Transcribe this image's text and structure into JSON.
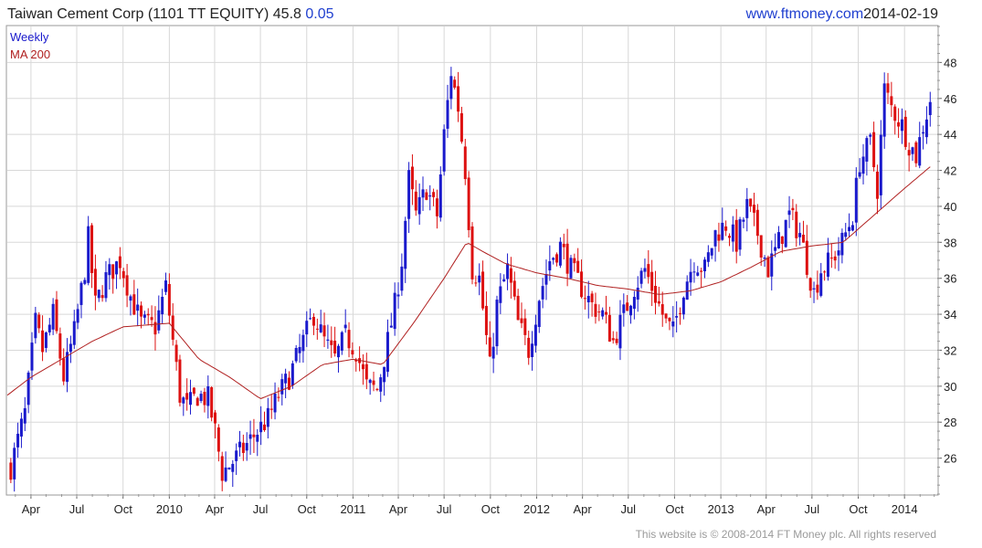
{
  "header": {
    "title": "Taiwan Cement Corp (1101 TT EQUITY) 45.8",
    "change": "0.05",
    "site": "www.ftmoney.com",
    "date": "2014-02-19"
  },
  "footer": "This website is © 2008-2014 FT Money plc. All rights reserved",
  "colors": {
    "up": "#1a1acc",
    "down": "#dd1111",
    "ma": "#b02020",
    "grid": "#d8d8d8",
    "blue_text": "#1f3fcf"
  },
  "chart_data": {
    "type": "candlestick",
    "title": "Taiwan Cement Corp (1101 TT EQUITY) 45.8 0.05",
    "legend": [
      "Weekly",
      "MA 200"
    ],
    "legend_position": "top-left",
    "y_axis_side": "right",
    "grid": true,
    "ylim": [
      24,
      50
    ],
    "yticks": [
      26,
      28,
      30,
      32,
      34,
      36,
      38,
      40,
      42,
      44,
      46,
      48
    ],
    "x_range": [
      "2009-02-13",
      "2014-03-07"
    ],
    "xticks": [
      {
        "date": "2009-04-01",
        "label": "Apr"
      },
      {
        "date": "2009-07-01",
        "label": "Jul"
      },
      {
        "date": "2009-10-01",
        "label": "Oct"
      },
      {
        "date": "2010-01-01",
        "label": "2010"
      },
      {
        "date": "2010-04-01",
        "label": "Apr"
      },
      {
        "date": "2010-07-01",
        "label": "Jul"
      },
      {
        "date": "2010-10-01",
        "label": "Oct"
      },
      {
        "date": "2011-01-01",
        "label": "2011"
      },
      {
        "date": "2011-04-01",
        "label": "Apr"
      },
      {
        "date": "2011-07-01",
        "label": "Jul"
      },
      {
        "date": "2011-10-01",
        "label": "Oct"
      },
      {
        "date": "2012-01-01",
        "label": "2012"
      },
      {
        "date": "2012-04-01",
        "label": "Apr"
      },
      {
        "date": "2012-07-01",
        "label": "Jul"
      },
      {
        "date": "2012-10-01",
        "label": "Oct"
      },
      {
        "date": "2013-01-01",
        "label": "2013"
      },
      {
        "date": "2013-04-01",
        "label": "Apr"
      },
      {
        "date": "2013-07-01",
        "label": "Jul"
      },
      {
        "date": "2013-10-01",
        "label": "Oct"
      },
      {
        "date": "2014-01-01",
        "label": "2014"
      }
    ],
    "close_anchors": [
      [
        "2009-02-20",
        25.5
      ],
      [
        "2009-03-20",
        28.5
      ],
      [
        "2009-04-10",
        33.5
      ],
      [
        "2009-04-24",
        32.0
      ],
      [
        "2009-05-15",
        34.0
      ],
      [
        "2009-06-05",
        30.5
      ],
      [
        "2009-06-26",
        33.0
      ],
      [
        "2009-07-17",
        36.5
      ],
      [
        "2009-07-24",
        38.2
      ],
      [
        "2009-08-07",
        34.5
      ],
      [
        "2009-08-28",
        36.0
      ],
      [
        "2009-09-25",
        37.0
      ],
      [
        "2009-10-16",
        35.0
      ],
      [
        "2009-11-06",
        33.5
      ],
      [
        "2009-12-04",
        33.3
      ],
      [
        "2009-12-25",
        35.5
      ],
      [
        "2010-01-22",
        29.5
      ],
      [
        "2010-02-05",
        28.8
      ],
      [
        "2010-02-26",
        29.5
      ],
      [
        "2010-03-19",
        29.3
      ],
      [
        "2010-04-02",
        27.5
      ],
      [
        "2010-04-16",
        25.2
      ],
      [
        "2010-05-07",
        25.8
      ],
      [
        "2010-05-28",
        26.5
      ],
      [
        "2010-06-25",
        27.5
      ],
      [
        "2010-07-16",
        28.2
      ],
      [
        "2010-08-06",
        29.5
      ],
      [
        "2010-08-27",
        30.5
      ],
      [
        "2010-09-24",
        32.5
      ],
      [
        "2010-10-15",
        34.0
      ],
      [
        "2010-11-05",
        32.5
      ],
      [
        "2010-11-26",
        31.5
      ],
      [
        "2010-12-17",
        32.8
      ],
      [
        "2011-01-07",
        32.0
      ],
      [
        "2011-01-28",
        30.0
      ],
      [
        "2011-02-18",
        29.8
      ],
      [
        "2011-03-11",
        32.5
      ],
      [
        "2011-03-25",
        34.5
      ],
      [
        "2011-04-08",
        37.0
      ],
      [
        "2011-04-22",
        41.5
      ],
      [
        "2011-05-06",
        39.5
      ],
      [
        "2011-05-27",
        41.0
      ],
      [
        "2011-06-17",
        39.5
      ],
      [
        "2011-07-01",
        44.0
      ],
      [
        "2011-07-15",
        47.5
      ],
      [
        "2011-07-29",
        45.5
      ],
      [
        "2011-08-12",
        42.0
      ],
      [
        "2011-08-26",
        36.5
      ],
      [
        "2011-09-09",
        36.0
      ],
      [
        "2011-09-30",
        31.0
      ],
      [
        "2011-10-14",
        34.5
      ],
      [
        "2011-11-04",
        36.5
      ],
      [
        "2011-11-25",
        33.5
      ],
      [
        "2011-12-16",
        32.0
      ],
      [
        "2012-01-06",
        35.0
      ],
      [
        "2012-01-27",
        37.0
      ],
      [
        "2012-02-17",
        37.8
      ],
      [
        "2012-03-09",
        36.5
      ],
      [
        "2012-03-30",
        35.5
      ],
      [
        "2012-04-20",
        34.5
      ],
      [
        "2012-05-11",
        34.0
      ],
      [
        "2012-06-01",
        32.5
      ],
      [
        "2012-06-22",
        34.0
      ],
      [
        "2012-07-13",
        35.5
      ],
      [
        "2012-08-03",
        36.5
      ],
      [
        "2012-08-24",
        35.0
      ],
      [
        "2012-09-14",
        33.5
      ],
      [
        "2012-09-28",
        33.0
      ],
      [
        "2012-10-19",
        35.5
      ],
      [
        "2012-11-09",
        37.0
      ],
      [
        "2012-11-30",
        36.5
      ],
      [
        "2012-12-21",
        38.5
      ],
      [
        "2013-01-11",
        39.0
      ],
      [
        "2013-02-01",
        38.0
      ],
      [
        "2013-02-22",
        40.0
      ],
      [
        "2013-03-15",
        38.5
      ],
      [
        "2013-04-05",
        36.5
      ],
      [
        "2013-04-26",
        38.0
      ],
      [
        "2013-05-17",
        39.5
      ],
      [
        "2013-06-07",
        38.5
      ],
      [
        "2013-06-28",
        36.0
      ],
      [
        "2013-07-05",
        35.2
      ],
      [
        "2013-07-19",
        36.5
      ],
      [
        "2013-08-09",
        37.0
      ],
      [
        "2013-08-30",
        38.0
      ],
      [
        "2013-09-20",
        39.5
      ],
      [
        "2013-10-04",
        42.5
      ],
      [
        "2013-10-25",
        43.5
      ],
      [
        "2013-11-08",
        41.0
      ],
      [
        "2013-11-22",
        46.5
      ],
      [
        "2013-12-06",
        45.5
      ],
      [
        "2013-12-27",
        44.5
      ],
      [
        "2014-01-10",
        43.5
      ],
      [
        "2014-01-24",
        42.8
      ],
      [
        "2014-02-07",
        44.5
      ],
      [
        "2014-02-21",
        45.8
      ]
    ],
    "ma200_anchors": [
      [
        "2009-02-13",
        29.5
      ],
      [
        "2009-04-01",
        30.5
      ],
      [
        "2009-06-01",
        31.5
      ],
      [
        "2009-08-01",
        32.5
      ],
      [
        "2009-10-01",
        33.3
      ],
      [
        "2010-01-01",
        33.5
      ],
      [
        "2010-03-01",
        31.5
      ],
      [
        "2010-05-01",
        30.5
      ],
      [
        "2010-07-01",
        29.3
      ],
      [
        "2010-09-01",
        30.0
      ],
      [
        "2010-11-01",
        31.2
      ],
      [
        "2011-01-01",
        31.5
      ],
      [
        "2011-03-01",
        31.2
      ],
      [
        "2011-05-01",
        33.5
      ],
      [
        "2011-07-01",
        36.0
      ],
      [
        "2011-08-15",
        38.0
      ],
      [
        "2011-09-15",
        37.5
      ],
      [
        "2011-11-01",
        36.8
      ],
      [
        "2012-01-01",
        36.3
      ],
      [
        "2012-03-01",
        36.0
      ],
      [
        "2012-05-01",
        35.6
      ],
      [
        "2012-07-01",
        35.4
      ],
      [
        "2012-09-01",
        35.1
      ],
      [
        "2012-11-01",
        35.3
      ],
      [
        "2013-01-01",
        35.8
      ],
      [
        "2013-03-01",
        36.6
      ],
      [
        "2013-05-01",
        37.5
      ],
      [
        "2013-07-01",
        37.8
      ],
      [
        "2013-09-01",
        38.0
      ],
      [
        "2013-11-01",
        39.5
      ],
      [
        "2014-01-01",
        41.0
      ],
      [
        "2014-02-21",
        42.2
      ]
    ]
  }
}
